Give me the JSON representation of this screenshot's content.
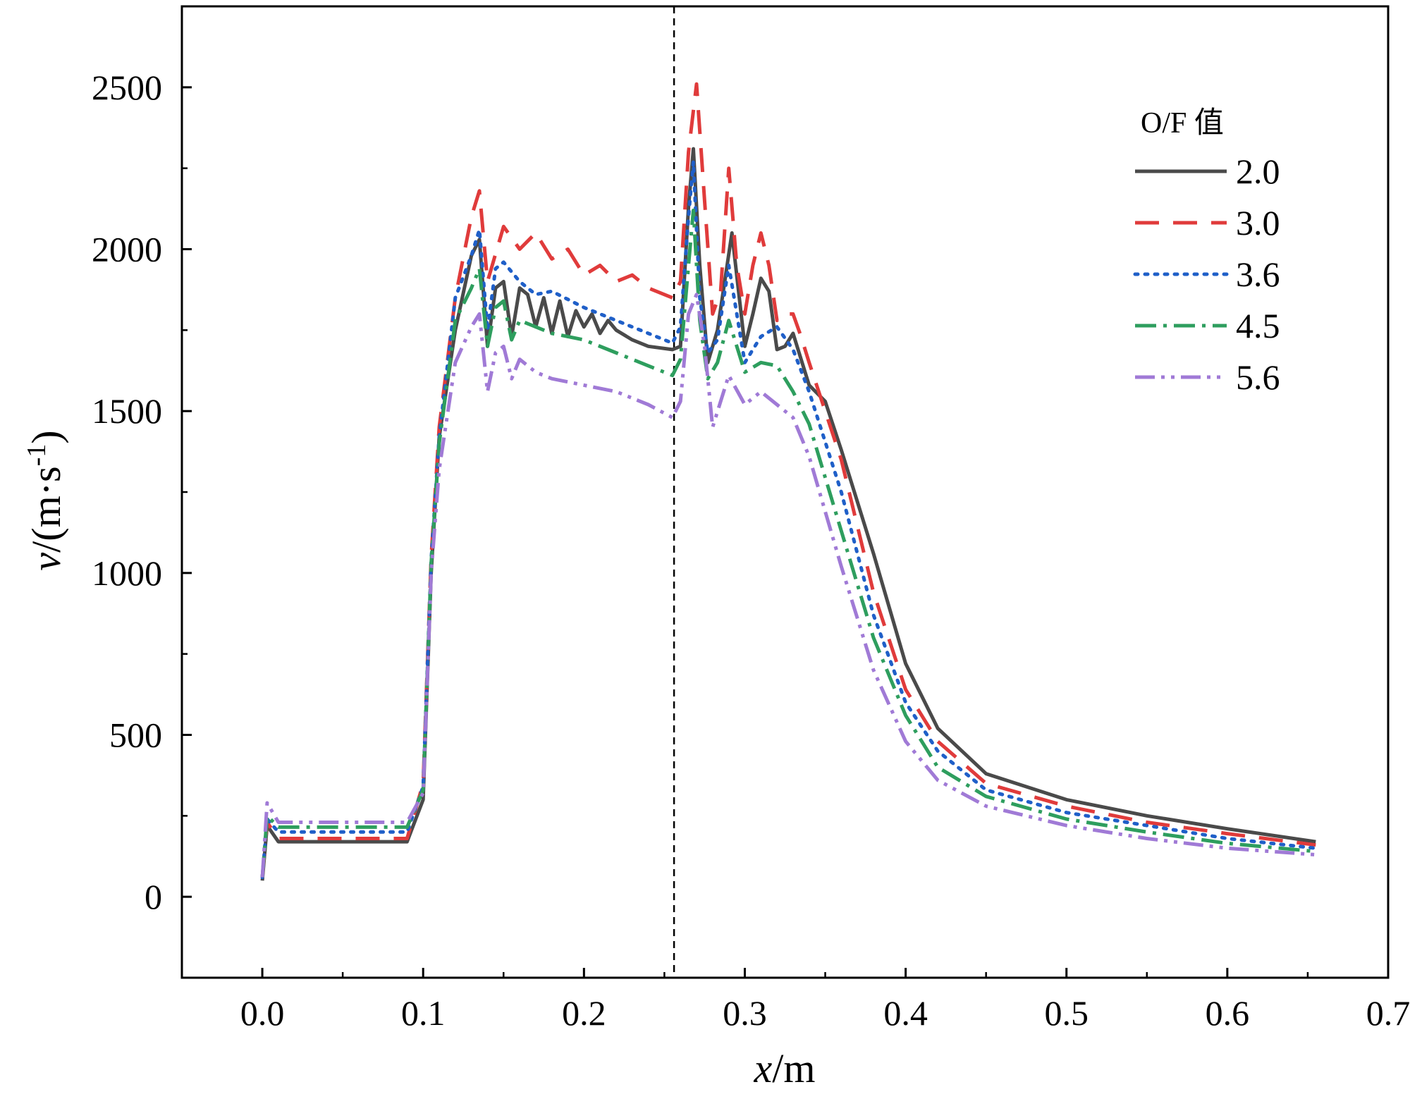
{
  "chart_data": {
    "type": "line",
    "xlabel": "x/m",
    "ylabel": "v/(m·s-1)",
    "xlim": [
      -0.05,
      0.7
    ],
    "ylim": [
      -250,
      2750
    ],
    "xticks": [
      "0.0",
      "0.1",
      "0.2",
      "0.3",
      "0.4",
      "0.5",
      "0.6",
      "0.7"
    ],
    "xtick_values": [
      0.0,
      0.1,
      0.2,
      0.3,
      0.4,
      0.5,
      0.6,
      0.7
    ],
    "yticks": [
      "0",
      "500",
      "1000",
      "1500",
      "2000",
      "2500"
    ],
    "ytick_values": [
      0,
      500,
      1000,
      1500,
      2000,
      2500
    ],
    "vline_x": 0.256,
    "legend": {
      "title": "O/F 值",
      "placement": "top-right"
    },
    "series": [
      {
        "name": "2.0",
        "color": "#4a4a4a",
        "style": "solid",
        "x": [
          0.0,
          0.003,
          0.01,
          0.03,
          0.09,
          0.1,
          0.105,
          0.11,
          0.12,
          0.13,
          0.135,
          0.14,
          0.145,
          0.15,
          0.155,
          0.16,
          0.165,
          0.17,
          0.175,
          0.18,
          0.185,
          0.19,
          0.195,
          0.2,
          0.205,
          0.21,
          0.215,
          0.22,
          0.23,
          0.24,
          0.255,
          0.26,
          0.265,
          0.268,
          0.272,
          0.277,
          0.283,
          0.292,
          0.3,
          0.305,
          0.31,
          0.315,
          0.32,
          0.325,
          0.33,
          0.335,
          0.34,
          0.35,
          0.36,
          0.38,
          0.4,
          0.42,
          0.45,
          0.5,
          0.55,
          0.6,
          0.655
        ],
        "y": [
          50,
          220,
          170,
          170,
          170,
          300,
          1000,
          1420,
          1750,
          1980,
          2030,
          1700,
          1880,
          1900,
          1730,
          1880,
          1860,
          1760,
          1850,
          1740,
          1840,
          1730,
          1810,
          1760,
          1800,
          1740,
          1780,
          1750,
          1720,
          1700,
          1690,
          1700,
          2130,
          2310,
          1950,
          1650,
          1750,
          2050,
          1700,
          1800,
          1910,
          1870,
          1690,
          1700,
          1740,
          1660,
          1580,
          1530,
          1380,
          1060,
          720,
          520,
          380,
          300,
          250,
          210,
          170
        ]
      },
      {
        "name": "3.0",
        "color": "#e03b3b",
        "style": "dashed",
        "x": [
          0.0,
          0.003,
          0.01,
          0.03,
          0.09,
          0.1,
          0.105,
          0.11,
          0.12,
          0.13,
          0.135,
          0.14,
          0.15,
          0.16,
          0.17,
          0.18,
          0.19,
          0.2,
          0.21,
          0.22,
          0.23,
          0.24,
          0.255,
          0.26,
          0.265,
          0.27,
          0.275,
          0.28,
          0.285,
          0.29,
          0.295,
          0.3,
          0.305,
          0.31,
          0.315,
          0.32,
          0.325,
          0.33,
          0.335,
          0.34,
          0.36,
          0.38,
          0.4,
          0.42,
          0.45,
          0.5,
          0.55,
          0.6,
          0.655
        ],
        "y": [
          60,
          230,
          180,
          180,
          180,
          350,
          1050,
          1450,
          1850,
          2100,
          2180,
          1900,
          2070,
          2000,
          2050,
          1970,
          2000,
          1920,
          1950,
          1900,
          1920,
          1880,
          1850,
          1900,
          2300,
          2510,
          2150,
          1800,
          1870,
          2250,
          1950,
          1800,
          1950,
          2050,
          1950,
          1780,
          1800,
          1800,
          1730,
          1650,
          1350,
          940,
          640,
          480,
          350,
          280,
          230,
          195,
          160
        ]
      },
      {
        "name": "3.6",
        "color": "#1f5fc8",
        "style": "dotted",
        "x": [
          0.0,
          0.003,
          0.01,
          0.03,
          0.09,
          0.1,
          0.105,
          0.11,
          0.12,
          0.13,
          0.135,
          0.14,
          0.145,
          0.15,
          0.16,
          0.17,
          0.18,
          0.2,
          0.22,
          0.24,
          0.255,
          0.26,
          0.265,
          0.268,
          0.272,
          0.277,
          0.283,
          0.29,
          0.3,
          0.31,
          0.32,
          0.33,
          0.34,
          0.36,
          0.38,
          0.4,
          0.42,
          0.45,
          0.5,
          0.55,
          0.6,
          0.655
        ],
        "y": [
          60,
          240,
          200,
          200,
          200,
          340,
          1040,
          1420,
          1850,
          1980,
          2060,
          1750,
          1940,
          1960,
          1900,
          1860,
          1870,
          1820,
          1780,
          1740,
          1710,
          1760,
          2100,
          2270,
          1850,
          1680,
          1720,
          1950,
          1650,
          1730,
          1760,
          1690,
          1560,
          1250,
          870,
          600,
          450,
          330,
          260,
          220,
          180,
          150
        ]
      },
      {
        "name": "4.5",
        "color": "#2e9e5e",
        "style": "dashdot",
        "x": [
          0.0,
          0.003,
          0.01,
          0.03,
          0.09,
          0.1,
          0.105,
          0.11,
          0.12,
          0.13,
          0.135,
          0.14,
          0.145,
          0.15,
          0.155,
          0.16,
          0.17,
          0.18,
          0.2,
          0.22,
          0.24,
          0.255,
          0.26,
          0.265,
          0.268,
          0.272,
          0.277,
          0.283,
          0.29,
          0.3,
          0.31,
          0.32,
          0.33,
          0.34,
          0.36,
          0.38,
          0.4,
          0.42,
          0.45,
          0.5,
          0.55,
          0.6,
          0.655
        ],
        "y": [
          60,
          250,
          215,
          215,
          215,
          330,
          1030,
          1400,
          1780,
          1880,
          1940,
          1700,
          1820,
          1840,
          1720,
          1780,
          1760,
          1740,
          1720,
          1680,
          1640,
          1610,
          1660,
          1950,
          2120,
          1780,
          1600,
          1650,
          1780,
          1620,
          1650,
          1640,
          1560,
          1460,
          1130,
          800,
          560,
          400,
          310,
          240,
          200,
          165,
          140
        ]
      },
      {
        "name": "5.6",
        "color": "#a07ad6",
        "style": "dashdotdot",
        "x": [
          0.0,
          0.003,
          0.01,
          0.03,
          0.09,
          0.1,
          0.105,
          0.11,
          0.12,
          0.13,
          0.135,
          0.14,
          0.145,
          0.15,
          0.155,
          0.16,
          0.17,
          0.18,
          0.2,
          0.22,
          0.24,
          0.255,
          0.26,
          0.265,
          0.27,
          0.275,
          0.28,
          0.285,
          0.29,
          0.3,
          0.31,
          0.32,
          0.33,
          0.34,
          0.36,
          0.38,
          0.4,
          0.42,
          0.45,
          0.5,
          0.55,
          0.6,
          0.655
        ],
        "y": [
          60,
          290,
          230,
          230,
          230,
          320,
          1000,
          1320,
          1650,
          1760,
          1800,
          1560,
          1680,
          1700,
          1600,
          1660,
          1620,
          1600,
          1580,
          1560,
          1520,
          1480,
          1530,
          1800,
          1860,
          1700,
          1450,
          1530,
          1610,
          1520,
          1560,
          1520,
          1480,
          1360,
          1020,
          700,
          480,
          360,
          280,
          220,
          180,
          150,
          130
        ]
      }
    ]
  }
}
